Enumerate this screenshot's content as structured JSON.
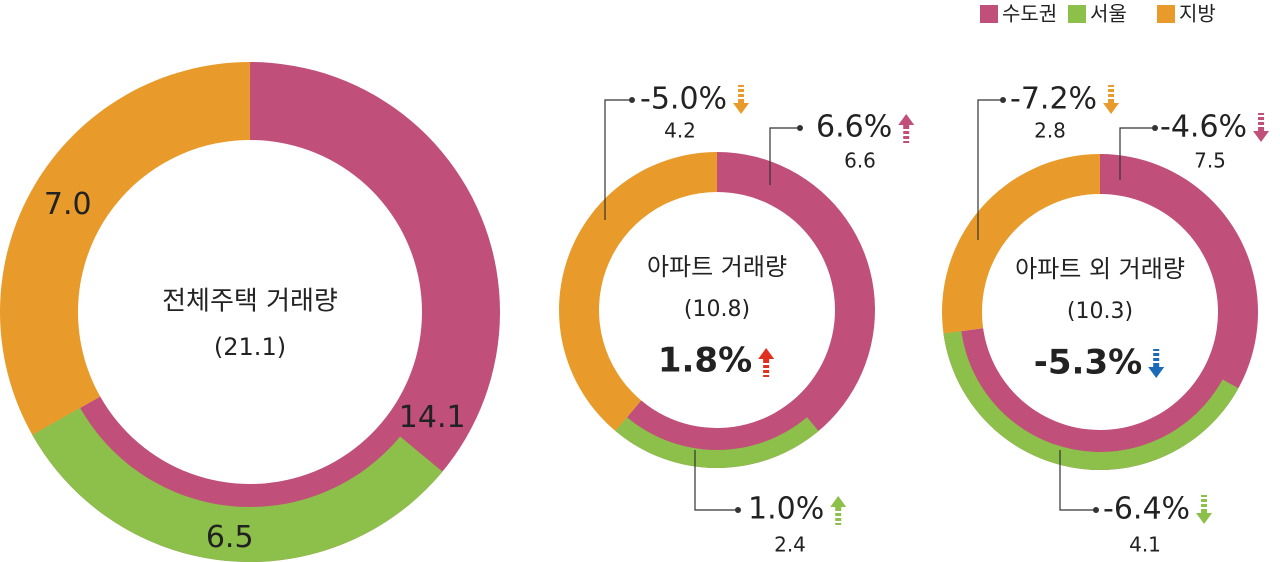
{
  "chart_data": [
    {
      "type": "donut",
      "title": "전체주택 거래량",
      "subtitle": "(21.1)",
      "categories": [
        "수도권",
        "서울",
        "지방"
      ],
      "colors": [
        "#c0507a",
        "#8cc04a",
        "#e89b2a"
      ],
      "values": [
        14.1,
        6.5,
        7.0
      ],
      "value_labels": [
        "14.1",
        "6.5",
        "7.0"
      ]
    },
    {
      "type": "donut",
      "title": "아파트 거래량",
      "subtitle": "(10.8)",
      "values": [
        6.6,
        2.4,
        4.2
      ],
      "changes": [
        6.6,
        1.0,
        -5.0
      ],
      "change_labels": [
        "6.6%",
        "1.0%",
        "-5.0%"
      ],
      "total_change": 1.8,
      "total_change_label": "1.8%"
    },
    {
      "type": "donut",
      "title": "아파트 외 거래량",
      "subtitle": "(10.3)",
      "values": [
        7.5,
        4.1,
        2.8
      ],
      "changes": [
        -4.6,
        -6.4,
        -7.2
      ],
      "change_labels": [
        "-4.6%",
        "-6.4%",
        "-7.2%"
      ],
      "total_change": -5.3,
      "total_change_label": "-5.3%"
    }
  ]
}
